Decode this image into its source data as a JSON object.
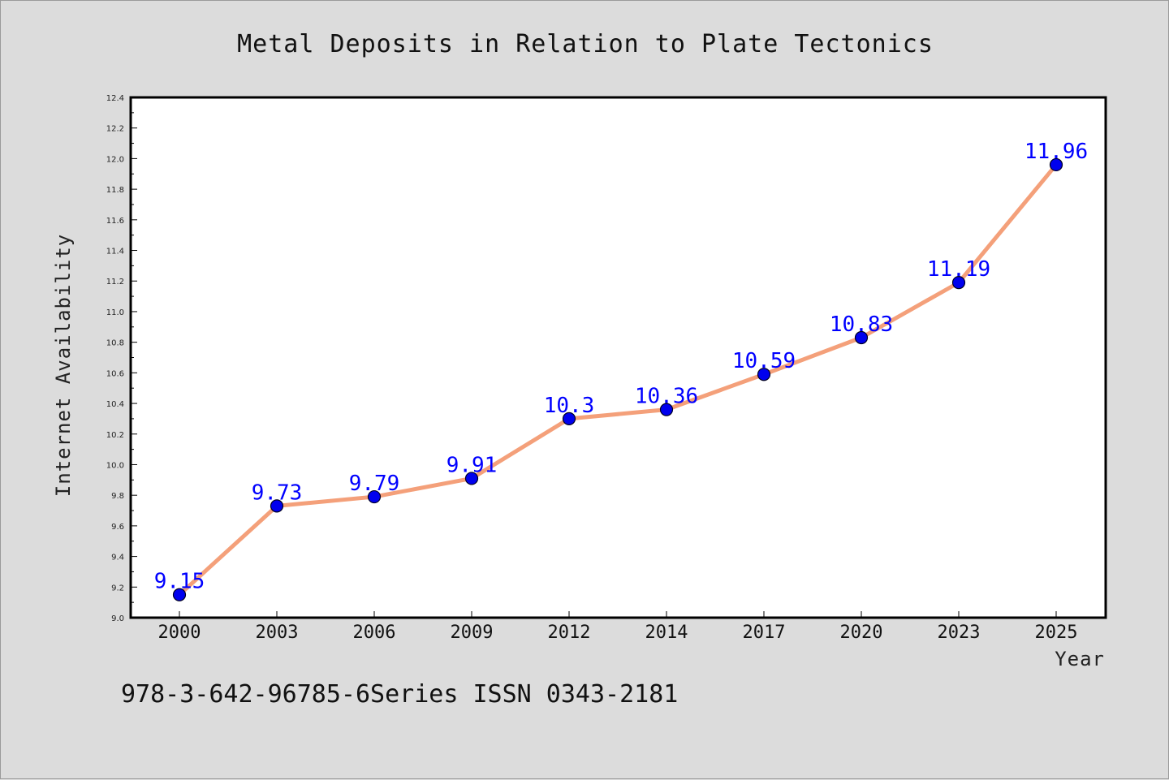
{
  "chart_data": {
    "type": "line",
    "title": "Metal Deposits in Relation to Plate Tectonics",
    "xlabel": "Year",
    "ylabel": "Internet Availability",
    "categories": [
      "2000",
      "2003",
      "2006",
      "2009",
      "2012",
      "2014",
      "2017",
      "2020",
      "2023",
      "2025"
    ],
    "series": [
      {
        "values": [
          9.15,
          9.73,
          9.79,
          9.91,
          10.3,
          10.36,
          10.59,
          10.83,
          11.19,
          11.96
        ],
        "data_labels": [
          "9.15",
          "9.73",
          "9.79",
          "9.91",
          "10.3",
          "10.36",
          "10.59",
          "10.83",
          "11.19",
          "11.96"
        ],
        "line_color": "#f4a07a",
        "marker_color": "#0000ee"
      }
    ],
    "ylim": [
      9.0,
      12.4
    ],
    "yticks": [
      "9.0",
      "9.2",
      "9.4",
      "9.6",
      "9.8",
      "10.0",
      "10.2",
      "10.4",
      "10.6",
      "10.8",
      "11.0",
      "11.2",
      "11.4",
      "11.6",
      "11.8",
      "12.0",
      "12.2",
      "12.4"
    ],
    "grid": false,
    "legend": "none",
    "label_color": "#0000ff"
  },
  "footer": {
    "text": "978-3-642-96785-6Series ISSN 0343-2181"
  }
}
